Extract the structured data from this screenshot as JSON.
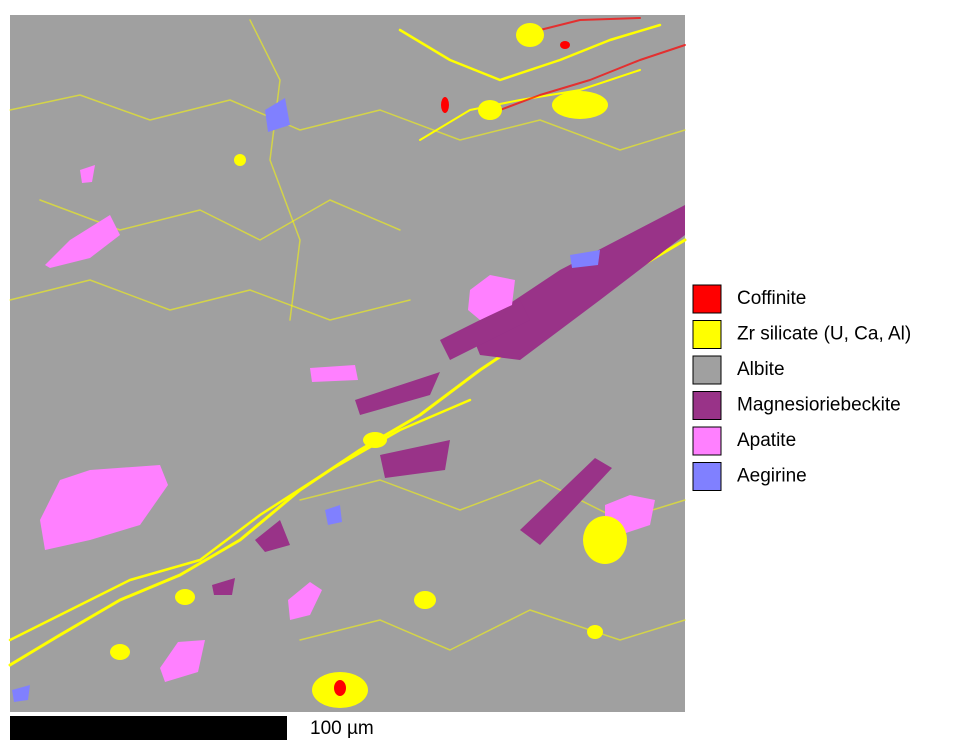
{
  "legend": {
    "items": [
      {
        "label": "Coffinite",
        "color": "#ff0000"
      },
      {
        "label": "Zr silicate (U, Ca, Al)",
        "color": "#ffff00"
      },
      {
        "label": "Albite",
        "color": "#a0a0a0"
      },
      {
        "label": "Magnesioriebeckite",
        "color": "#993388"
      },
      {
        "label": "Apatite",
        "color": "#ff80ff"
      },
      {
        "label": "Aegirine",
        "color": "#8080ff"
      }
    ]
  },
  "scale_bar": {
    "label": "100 µm"
  }
}
